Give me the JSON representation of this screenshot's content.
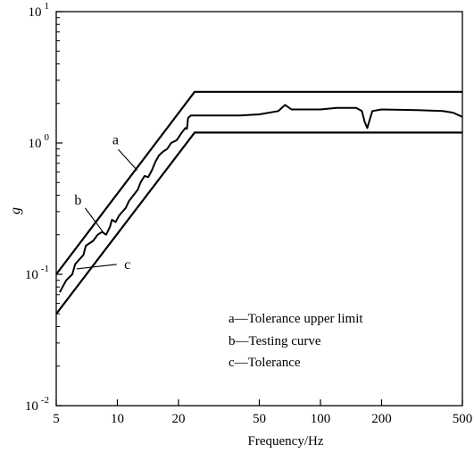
{
  "chart_data": {
    "type": "line",
    "xscale": "log",
    "yscale": "log",
    "xlim": [
      5,
      500
    ],
    "ylim": [
      0.01,
      10
    ],
    "xlabel": "Frequency/Hz",
    "ylabel": "g",
    "x_ticks": [
      {
        "value": 5,
        "label": "5"
      },
      {
        "value": 10,
        "label": "10"
      },
      {
        "value": 20,
        "label": "20"
      },
      {
        "value": 50,
        "label": "50"
      },
      {
        "value": 100,
        "label": "100"
      },
      {
        "value": 200,
        "label": "200"
      },
      {
        "value": 500,
        "label": "500"
      }
    ],
    "y_ticks": [
      {
        "value": 0.01,
        "base": "10",
        "exp": "-2"
      },
      {
        "value": 0.1,
        "base": "10",
        "exp": "-1"
      },
      {
        "value": 1,
        "base": "10",
        "exp": "0"
      },
      {
        "value": 10,
        "base": "10",
        "exp": "1"
      }
    ],
    "grid": false,
    "series": [
      {
        "name": "Tolerance upper limit",
        "key": "a",
        "x": [
          5,
          24,
          500
        ],
        "y": [
          0.1,
          2.45,
          2.45
        ]
      },
      {
        "name": "Testing curve",
        "key": "b",
        "x": [
          5.2,
          5.6,
          6.0,
          6.2,
          6.8,
          7.0,
          7.6,
          8.0,
          8.4,
          8.8,
          9.2,
          9.4,
          9.8,
          10.2,
          10.6,
          11.0,
          11.4,
          12.0,
          12.6,
          13.0,
          13.6,
          14.2,
          14.8,
          15.4,
          16.0,
          16.8,
          17.6,
          18.4,
          19.6,
          20.6,
          21.6,
          22.0,
          22.3,
          23.0,
          40,
          50,
          62,
          67,
          72,
          100,
          120,
          150,
          160,
          165,
          170,
          180,
          200,
          300,
          400,
          450,
          500
        ],
        "y": [
          0.073,
          0.09,
          0.1,
          0.12,
          0.14,
          0.165,
          0.18,
          0.2,
          0.21,
          0.2,
          0.23,
          0.26,
          0.25,
          0.28,
          0.3,
          0.32,
          0.36,
          0.4,
          0.44,
          0.5,
          0.56,
          0.55,
          0.62,
          0.72,
          0.8,
          0.86,
          0.9,
          1.0,
          1.05,
          1.18,
          1.3,
          1.28,
          1.55,
          1.62,
          1.62,
          1.65,
          1.75,
          1.95,
          1.8,
          1.8,
          1.85,
          1.85,
          1.75,
          1.45,
          1.3,
          1.75,
          1.8,
          1.78,
          1.75,
          1.7,
          1.58
        ]
      },
      {
        "name": "Tolerance",
        "key": "c",
        "x": [
          5,
          24,
          500
        ],
        "y": [
          0.05,
          1.2,
          1.2
        ]
      }
    ],
    "annotations": [
      {
        "text": "a",
        "series": "a",
        "x": 9.8,
        "y": 0.98,
        "arrow_to_x": 12.5,
        "arrow_to_y": 0.62
      },
      {
        "text": "b",
        "series": "b",
        "x": 6.4,
        "y": 0.34,
        "arrow_to_x": 8.7,
        "arrow_to_y": 0.2
      },
      {
        "text": "c",
        "series": "c",
        "x": 11.2,
        "y": 0.11,
        "arrow_to_x": 6.3,
        "arrow_to_y": 0.11
      }
    ],
    "legend": {
      "placement": "bottom-right",
      "entries": [
        "a—Tolerance upper limit",
        "b—Testing curve",
        "c—Tolerance"
      ]
    }
  }
}
